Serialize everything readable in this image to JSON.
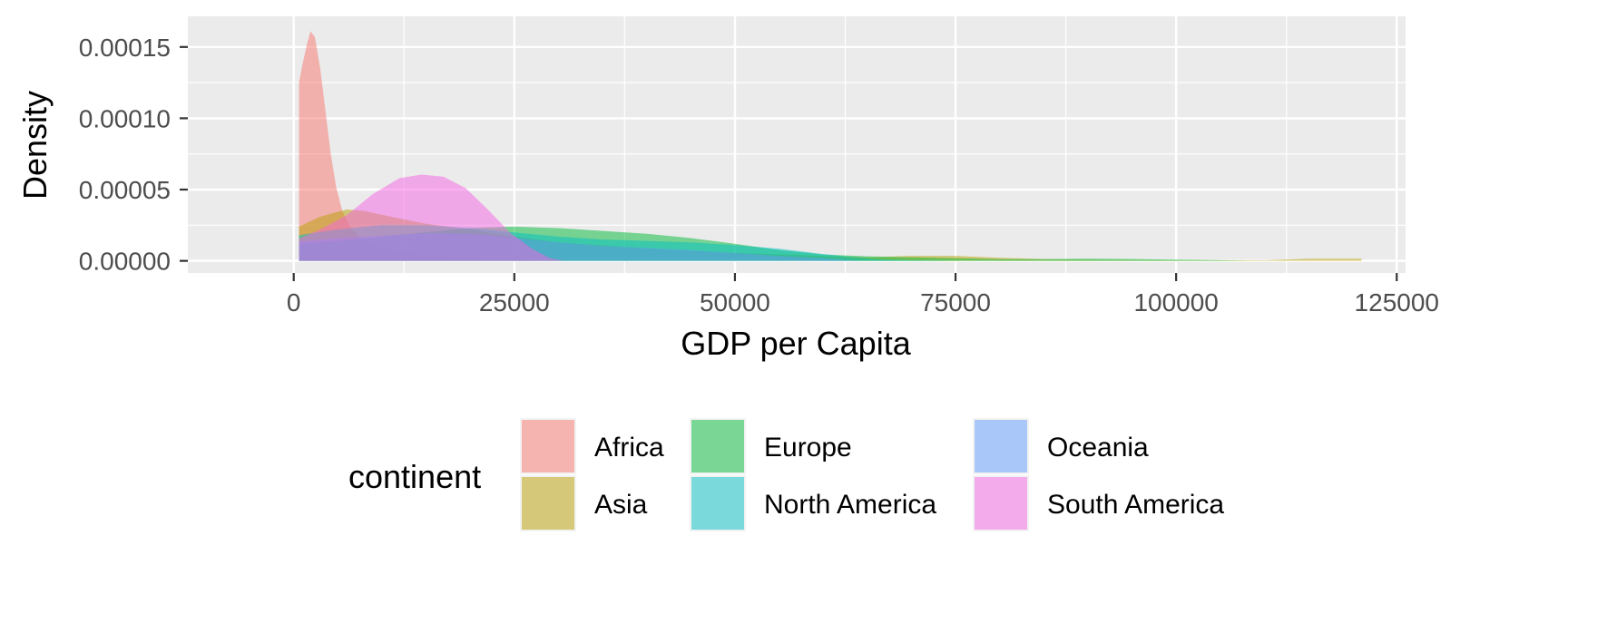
{
  "chart_data": {
    "type": "area",
    "subtype": "density",
    "title": "",
    "xlabel": "GDP per Capita",
    "ylabel": "Density",
    "xlim": [
      -12000,
      126000
    ],
    "ylim": [
      -8.5e-06,
      0.0001715
    ],
    "x_ticks": [
      0,
      25000,
      50000,
      75000,
      100000,
      125000
    ],
    "x_tick_labels": [
      "0",
      "25000",
      "50000",
      "75000",
      "100000",
      "125000"
    ],
    "y_ticks": [
      0,
      5e-05,
      0.0001,
      0.00015
    ],
    "y_tick_labels": [
      "0.00000",
      "0.00005",
      "0.00010",
      "0.00015"
    ],
    "grid": true,
    "background": "#EBEBEB",
    "alpha": 0.5,
    "legend": {
      "title": "continent",
      "placement": "bottom",
      "items": [
        "Africa",
        "Asia",
        "Europe",
        "North America",
        "Oceania",
        "South America"
      ]
    },
    "series": [
      {
        "name": "Africa",
        "color": "#F8766D",
        "points": [
          [
            600,
            0.000125
          ],
          [
            1000,
            0.000138
          ],
          [
            1500,
            0.000152
          ],
          [
            1900,
            0.000161
          ],
          [
            2400,
            0.000157
          ],
          [
            3000,
            0.000135
          ],
          [
            3600,
            0.000105
          ],
          [
            4200,
            7.5e-05
          ],
          [
            4800,
            5.2e-05
          ],
          [
            5500,
            3.5e-05
          ],
          [
            6500,
            2.3e-05
          ],
          [
            7500,
            1.6e-05
          ],
          [
            9000,
            1.1e-05
          ],
          [
            11000,
            7.5e-06
          ],
          [
            13000,
            5.5e-06
          ],
          [
            16000,
            3.5e-06
          ],
          [
            19000,
            2.2e-06
          ],
          [
            22000,
            1.2e-06
          ],
          [
            25000,
            6e-07
          ],
          [
            28000,
            2e-07
          ],
          [
            30000,
            0
          ]
        ]
      },
      {
        "name": "Asia",
        "color": "#B79F00",
        "points": [
          [
            600,
            2.4e-05
          ],
          [
            3000,
            3.1e-05
          ],
          [
            6000,
            3.6e-05
          ],
          [
            8000,
            3.5e-05
          ],
          [
            11000,
            3.1e-05
          ],
          [
            15000,
            2.6e-05
          ],
          [
            20000,
            2.2e-05
          ],
          [
            25000,
            1.7e-05
          ],
          [
            30000,
            1.3e-05
          ],
          [
            40000,
            8.5e-06
          ],
          [
            50000,
            5.5e-06
          ],
          [
            60000,
            3.5e-06
          ],
          [
            65000,
            2.5e-06
          ],
          [
            70000,
            3.5e-06
          ],
          [
            75000,
            3.5e-06
          ],
          [
            80000,
            2.2e-06
          ],
          [
            85000,
            1.2e-06
          ],
          [
            90000,
            8e-07
          ],
          [
            100000,
            5e-07
          ],
          [
            110000,
            4e-07
          ],
          [
            115000,
            1.5e-06
          ],
          [
            121000,
            1.5e-06
          ]
        ]
      },
      {
        "name": "Europe",
        "color": "#00BA38",
        "points": [
          [
            600,
            1.2e-05
          ],
          [
            5000,
            1.4e-05
          ],
          [
            10000,
            1.7e-05
          ],
          [
            15000,
            2e-05
          ],
          [
            20000,
            2.3e-05
          ],
          [
            25000,
            2.4e-05
          ],
          [
            30000,
            2.3e-05
          ],
          [
            35000,
            2.1e-05
          ],
          [
            40000,
            1.9e-05
          ],
          [
            45000,
            1.6e-05
          ],
          [
            50000,
            1.2e-05
          ],
          [
            55000,
            7.5e-06
          ],
          [
            60000,
            4.5e-06
          ],
          [
            65000,
            3.2e-06
          ],
          [
            70000,
            2.5e-06
          ],
          [
            75000,
            1.8e-06
          ],
          [
            80000,
            1.2e-06
          ],
          [
            85000,
            1.2e-06
          ],
          [
            90000,
            1.5e-06
          ],
          [
            95000,
            1.3e-06
          ],
          [
            100000,
            9e-07
          ],
          [
            105000,
            5e-07
          ],
          [
            108000,
            0
          ]
        ]
      },
      {
        "name": "North America",
        "color": "#00BFC4",
        "points": [
          [
            600,
            1.8e-05
          ],
          [
            5000,
            2.2e-05
          ],
          [
            10000,
            2.5e-05
          ],
          [
            15000,
            2.5e-05
          ],
          [
            20000,
            2.3e-05
          ],
          [
            25000,
            2e-05
          ],
          [
            30000,
            1.7e-05
          ],
          [
            35000,
            1.5e-05
          ],
          [
            40000,
            1.4e-05
          ],
          [
            45000,
            1.3e-05
          ],
          [
            50000,
            1.1e-05
          ],
          [
            55000,
            8.5e-06
          ],
          [
            60000,
            4.8e-06
          ],
          [
            63000,
            2.8e-06
          ],
          [
            66000,
            1.2e-06
          ],
          [
            70000,
            4e-07
          ],
          [
            75000,
            0
          ]
        ]
      },
      {
        "name": "Oceania",
        "color": "#619CFF",
        "points": [
          [
            600,
            1.35e-05
          ],
          [
            5000,
            1.6e-05
          ],
          [
            10000,
            1.75e-05
          ],
          [
            15000,
            1.95e-05
          ],
          [
            20000,
            1.9e-05
          ],
          [
            25000,
            1.65e-05
          ],
          [
            30000,
            1.3e-05
          ],
          [
            35000,
            1.05e-05
          ],
          [
            40000,
            9e-06
          ],
          [
            45000,
            7.5e-06
          ],
          [
            50000,
            5.5e-06
          ],
          [
            55000,
            3.5e-06
          ],
          [
            60000,
            1.8e-06
          ],
          [
            64000,
            0
          ]
        ]
      },
      {
        "name": "South America",
        "color": "#F564E3",
        "points": [
          [
            600,
            1.55e-05
          ],
          [
            3000,
            2.2e-05
          ],
          [
            6000,
            3.2e-05
          ],
          [
            9000,
            4.7e-05
          ],
          [
            12000,
            5.8e-05
          ],
          [
            14500,
            6.05e-05
          ],
          [
            17000,
            5.9e-05
          ],
          [
            19500,
            5.1e-05
          ],
          [
            22000,
            3.6e-05
          ],
          [
            24500,
            2e-05
          ],
          [
            27000,
            8.5e-06
          ],
          [
            29000,
            2e-06
          ],
          [
            30500,
            0
          ]
        ]
      }
    ]
  }
}
